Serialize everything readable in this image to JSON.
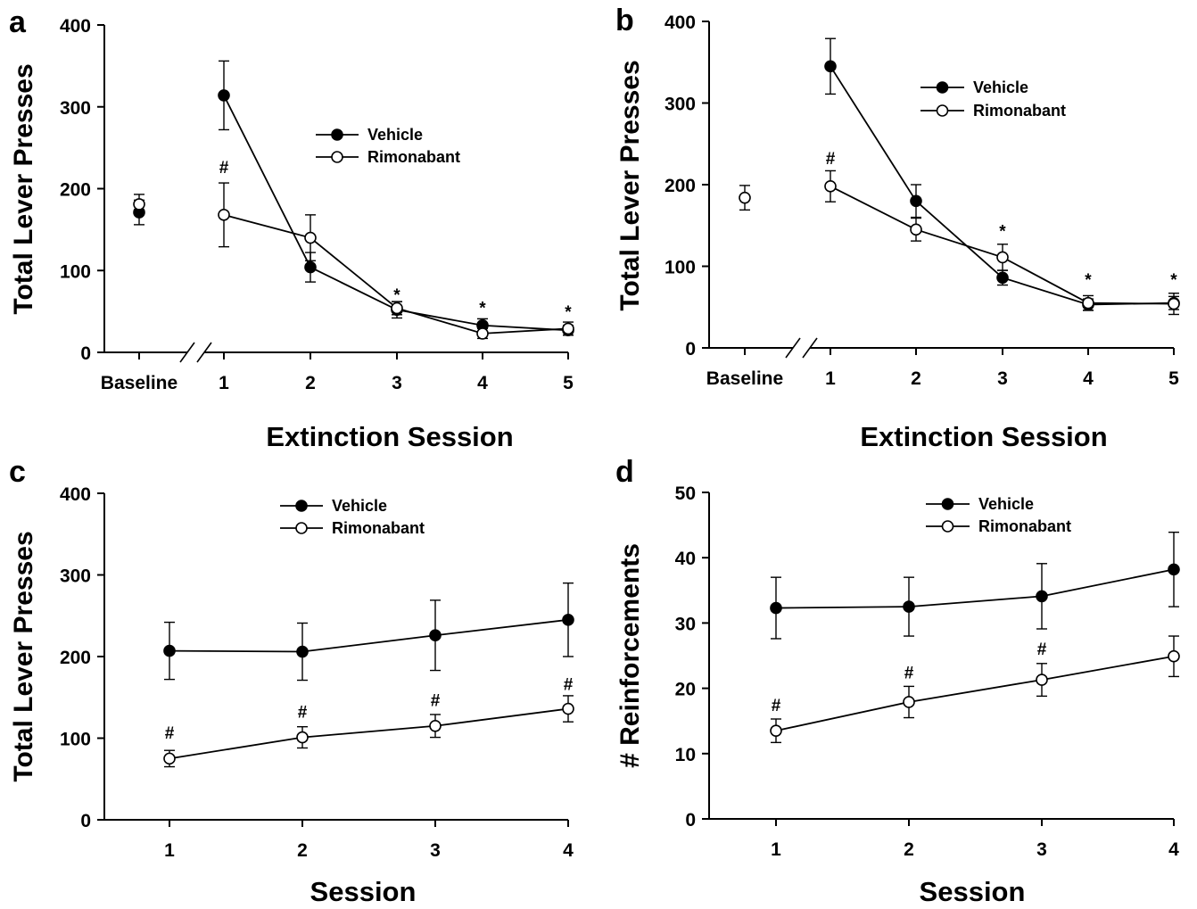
{
  "figure": {
    "background": "#ffffff",
    "ink": "#000000"
  },
  "chart_data": [
    {
      "panel": "a",
      "type": "line",
      "categories": [
        "Baseline",
        "1",
        "2",
        "3",
        "4",
        "5"
      ],
      "ylabel": "Total Lever Presses",
      "xlabel": "Extinction Session",
      "ylim": [
        0,
        400
      ],
      "yticks": [
        0,
        100,
        200,
        300,
        400
      ],
      "axis_break": "between Baseline and 1",
      "legend": "upper-middle",
      "series": [
        {
          "name": "Vehicle",
          "marker": "filled",
          "values": [
            171,
            314,
            104,
            52,
            33,
            27
          ],
          "errors": [
            15,
            42,
            18,
            10,
            8,
            6
          ],
          "connect_from": 1
        },
        {
          "name": "Rimonabant",
          "marker": "open",
          "values": [
            181,
            168,
            140,
            54,
            23,
            29
          ],
          "errors": [
            12,
            39,
            28,
            8,
            6,
            8
          ],
          "connect_from": 1
        }
      ],
      "annotations": [
        {
          "text": "#",
          "category": "1",
          "y": 228
        },
        {
          "text": "*",
          "category": "3",
          "y": 72
        },
        {
          "text": "*",
          "category": "4",
          "y": 56
        },
        {
          "text": "*",
          "category": "5",
          "y": 51
        }
      ]
    },
    {
      "panel": "b",
      "type": "line",
      "categories": [
        "Baseline",
        "1",
        "2",
        "3",
        "4",
        "5"
      ],
      "ylabel": "Total Lever Presses",
      "xlabel": "Extinction Session",
      "ylim": [
        0,
        400
      ],
      "yticks": [
        0,
        100,
        200,
        300,
        400
      ],
      "axis_break": "between Baseline and 1",
      "legend": "upper-middle",
      "series": [
        {
          "name": "Vehicle",
          "marker": "filled",
          "values": [
            null,
            345,
            180,
            86,
            53,
            55
          ],
          "errors": [
            null,
            34,
            20,
            9,
            7,
            8
          ],
          "connect_from": 1
        },
        {
          "name": "Rimonabant",
          "marker": "open",
          "values": [
            184,
            198,
            145,
            111,
            55,
            54
          ],
          "errors": [
            15,
            19,
            14,
            16,
            9,
            13
          ],
          "connect_from": 1
        }
      ],
      "annotations": [
        {
          "text": "#",
          "category": "1",
          "y": 234
        },
        {
          "text": "*",
          "category": "3",
          "y": 145
        },
        {
          "text": "*",
          "category": "4",
          "y": 85
        },
        {
          "text": "*",
          "category": "5",
          "y": 85
        }
      ]
    },
    {
      "panel": "c",
      "type": "line",
      "categories": [
        "1",
        "2",
        "3",
        "4"
      ],
      "ylabel": "Total Lever Presses",
      "xlabel": "Session",
      "ylim": [
        0,
        400
      ],
      "yticks": [
        0,
        100,
        200,
        300,
        400
      ],
      "legend": "upper-middle",
      "series": [
        {
          "name": "Vehicle",
          "marker": "filled",
          "values": [
            207,
            206,
            226,
            245
          ],
          "errors": [
            35,
            35,
            43,
            45
          ],
          "connect_from": 0
        },
        {
          "name": "Rimonabant",
          "marker": "open",
          "values": [
            75,
            101,
            115,
            136
          ],
          "errors": [
            10,
            13,
            14,
            16
          ],
          "connect_from": 0
        }
      ],
      "annotations": [
        {
          "text": "#",
          "category": "1",
          "y": 108
        },
        {
          "text": "#",
          "category": "2",
          "y": 134
        },
        {
          "text": "#",
          "category": "3",
          "y": 148
        },
        {
          "text": "#",
          "category": "4",
          "y": 168
        }
      ]
    },
    {
      "panel": "d",
      "type": "line",
      "categories": [
        "1",
        "2",
        "3",
        "4"
      ],
      "ylabel": "# Reinforcements",
      "xlabel": "Session",
      "ylim": [
        0,
        50
      ],
      "yticks": [
        0,
        10,
        20,
        30,
        40,
        50
      ],
      "legend": "upper-middle",
      "series": [
        {
          "name": "Vehicle",
          "marker": "filled",
          "values": [
            32.3,
            32.5,
            34.1,
            38.2
          ],
          "errors": [
            4.7,
            4.5,
            5.0,
            5.7
          ],
          "connect_from": 0
        },
        {
          "name": "Rimonabant",
          "marker": "open",
          "values": [
            13.5,
            17.9,
            21.3,
            24.9
          ],
          "errors": [
            1.8,
            2.4,
            2.5,
            3.1
          ],
          "connect_from": 0
        }
      ],
      "annotations": [
        {
          "text": "#",
          "category": "1",
          "y": 17.6
        },
        {
          "text": "#",
          "category": "2",
          "y": 22.6
        },
        {
          "text": "#",
          "category": "3",
          "y": 26.2
        }
      ]
    }
  ]
}
